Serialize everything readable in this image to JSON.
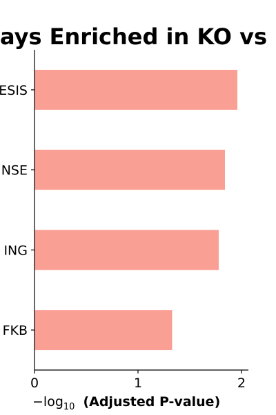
{
  "chart_data": {
    "type": "bar",
    "orientation": "horizontal",
    "title": "ays Enriched in KO vs",
    "categories": [
      "ESIS",
      "NSE",
      "ING",
      "FKB"
    ],
    "values": [
      1.96,
      1.84,
      1.78,
      1.33
    ],
    "xlabel_math": "−log",
    "xlabel_sub": "10",
    "xlabel_rest": "(Adjusted P-value)",
    "xlim": [
      0,
      2.08
    ],
    "xticks": [
      "0",
      "1",
      "2"
    ],
    "xtick_values": [
      0,
      1,
      2
    ],
    "grid": false,
    "bar_color": "#FA9F94"
  }
}
